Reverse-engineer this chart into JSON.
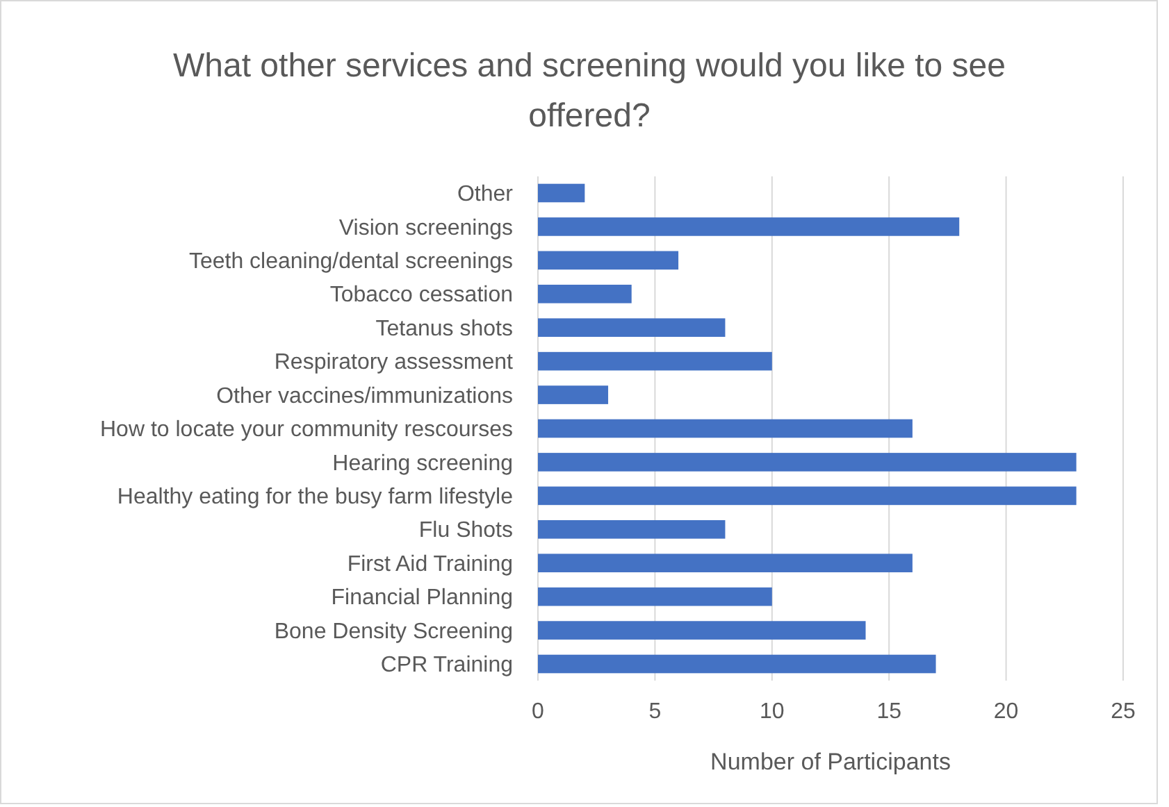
{
  "chart_data": {
    "type": "bar",
    "orientation": "horizontal",
    "title": "What other services and screening would you like to see offered?",
    "xlabel": "Number of Participants",
    "categories": [
      "Other",
      "Vision screenings",
      "Teeth cleaning/dental screenings",
      "Tobacco cessation",
      "Tetanus shots",
      "Respiratory assessment",
      "Other vaccines/immunizations",
      "How to locate your community rescourses",
      "Hearing screening",
      "Healthy eating for the busy farm lifestyle",
      "Flu Shots",
      "First Aid Training",
      "Financial Planning",
      "Bone Density Screening",
      "CPR Training"
    ],
    "values": [
      2,
      18,
      6,
      4,
      8,
      10,
      3,
      16,
      23,
      23,
      8,
      16,
      10,
      14,
      17
    ],
    "color": "#4472c4",
    "xlim": [
      0,
      25
    ],
    "xticks": [
      0,
      5,
      10,
      15,
      20,
      25
    ],
    "grid": "x"
  }
}
